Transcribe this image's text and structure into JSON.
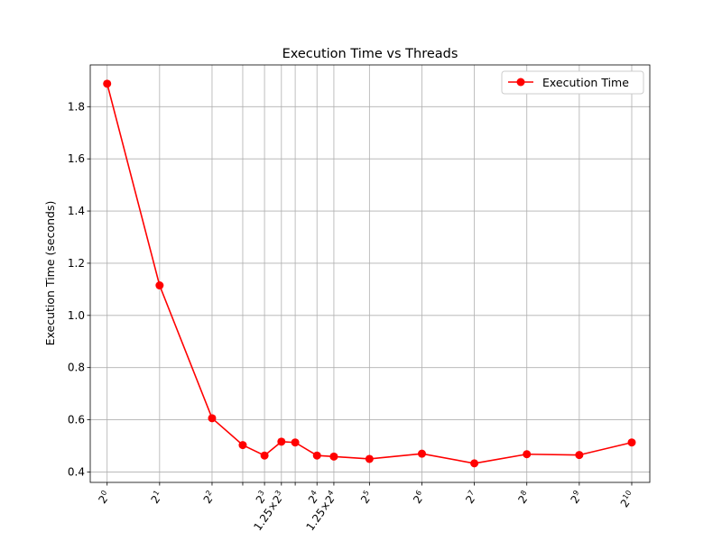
{
  "chart_data": {
    "type": "line",
    "title": "Execution Time vs Threads",
    "xlabel": "",
    "ylabel": "Execution Time (seconds)",
    "x_scale": "log2",
    "x": [
      1,
      2,
      4,
      6,
      8,
      10,
      12,
      16,
      20,
      32,
      64,
      128,
      256,
      512,
      1024
    ],
    "series": [
      {
        "name": "Execution Time",
        "color": "#ff0000",
        "marker": "circle",
        "values": [
          1.888,
          1.115,
          0.606,
          0.503,
          0.463,
          0.516,
          0.513,
          0.463,
          0.459,
          0.45,
          0.47,
          0.433,
          0.468,
          0.465,
          0.513
        ]
      }
    ],
    "x_ticks": [
      {
        "value": 1,
        "base": "2",
        "exp": "0",
        "coef": ""
      },
      {
        "value": 2,
        "base": "2",
        "exp": "1",
        "coef": ""
      },
      {
        "value": 4,
        "base": "2",
        "exp": "2",
        "coef": ""
      },
      {
        "value": 6,
        "base": "",
        "exp": "",
        "coef": ""
      },
      {
        "value": 8,
        "base": "2",
        "exp": "3",
        "coef": ""
      },
      {
        "value": 10,
        "base": "2",
        "exp": "3",
        "coef": "1.25×"
      },
      {
        "value": 12,
        "base": "",
        "exp": "",
        "coef": ""
      },
      {
        "value": 16,
        "base": "2",
        "exp": "4",
        "coef": ""
      },
      {
        "value": 20,
        "base": "2",
        "exp": "4",
        "coef": "1.25×"
      },
      {
        "value": 32,
        "base": "2",
        "exp": "5",
        "coef": ""
      },
      {
        "value": 64,
        "base": "2",
        "exp": "6",
        "coef": ""
      },
      {
        "value": 128,
        "base": "2",
        "exp": "7",
        "coef": ""
      },
      {
        "value": 256,
        "base": "2",
        "exp": "8",
        "coef": ""
      },
      {
        "value": 512,
        "base": "2",
        "exp": "9",
        "coef": ""
      },
      {
        "value": 1024,
        "base": "2",
        "exp": "10",
        "coef": ""
      }
    ],
    "y_ticks": [
      "0.4",
      "0.6",
      "0.8",
      "1.0",
      "1.2",
      "1.4",
      "1.6",
      "1.8"
    ],
    "xlim": [
      0.8,
      1300
    ],
    "ylim": [
      0.36,
      1.96
    ],
    "grid": true,
    "legend": {
      "position": "top-right",
      "entries": [
        "Execution Time"
      ]
    }
  }
}
